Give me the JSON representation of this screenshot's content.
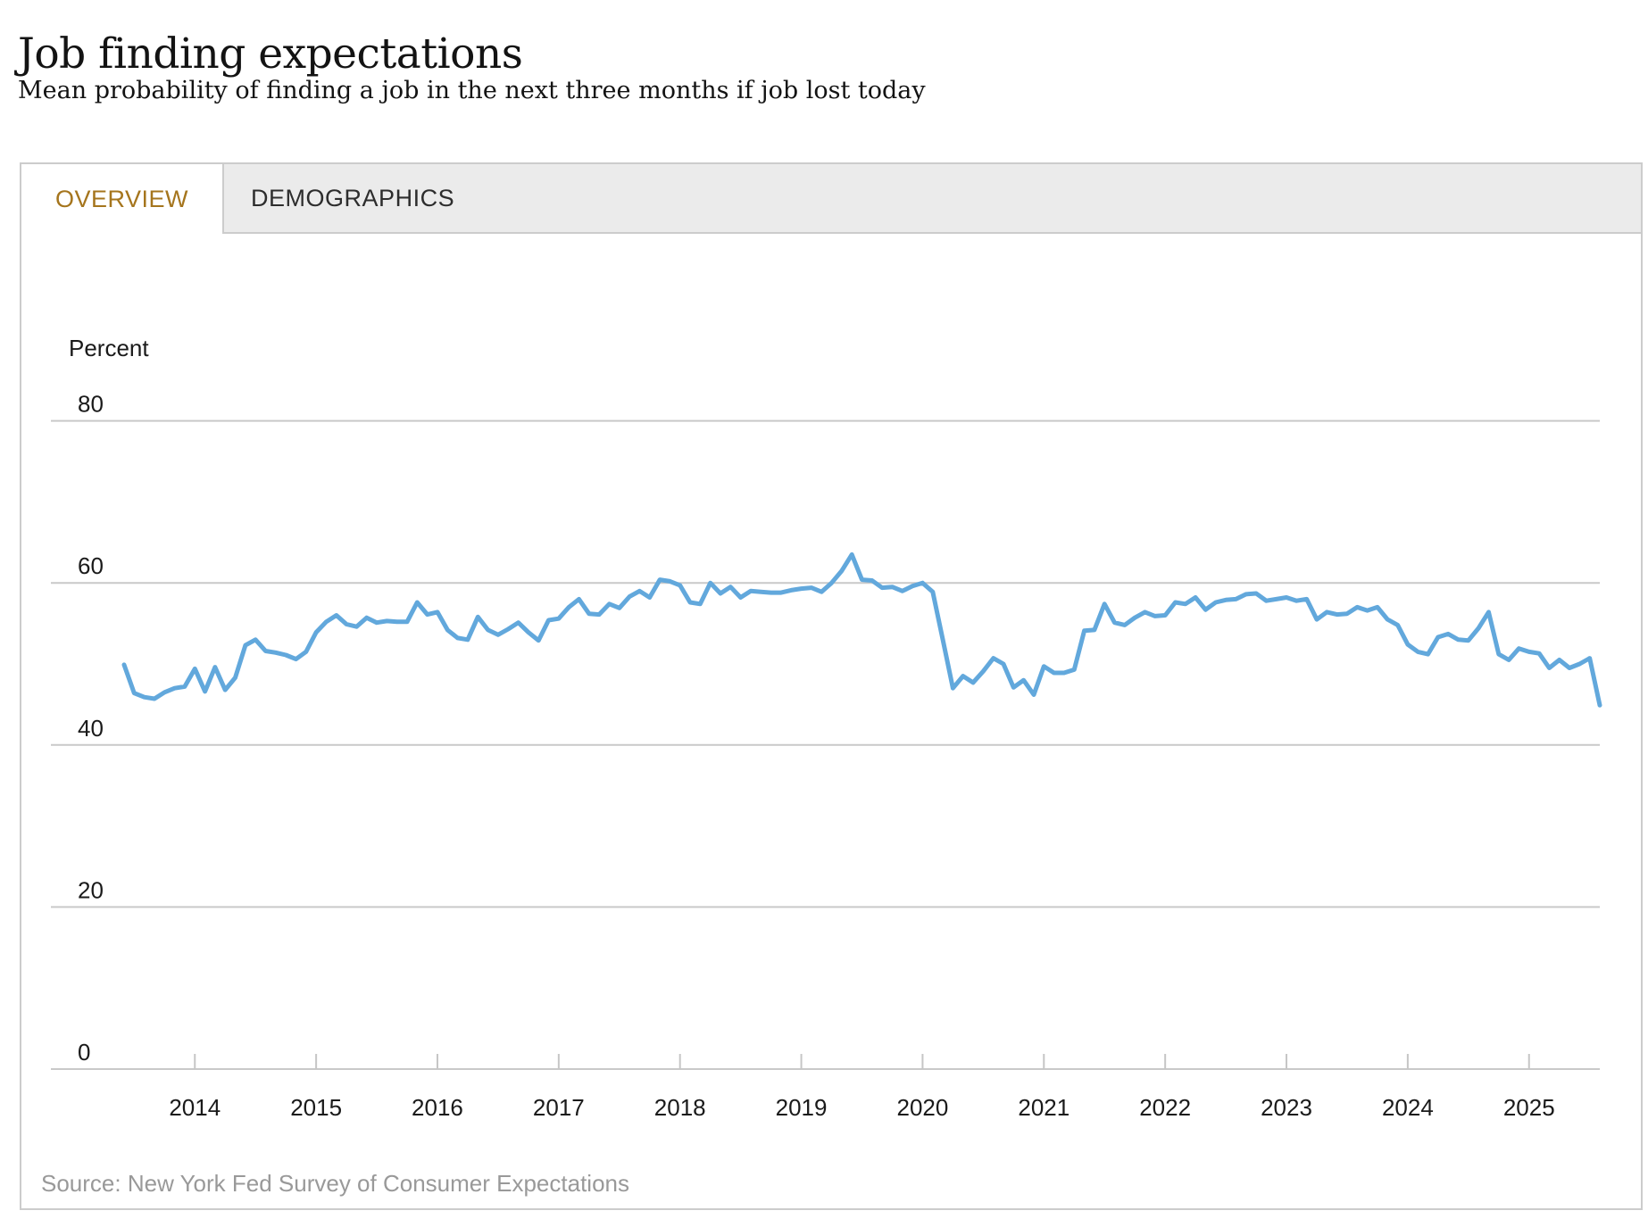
{
  "page": {
    "title": "Job finding expectations",
    "subtitle": "Mean probability of finding a job in the next three months if job lost today"
  },
  "tabs": [
    {
      "label": "OVERVIEW",
      "active": true
    },
    {
      "label": "DEMOGRAPHICS",
      "active": false
    }
  ],
  "source_note": "Source: New York Fed Survey of Consumer Expectations",
  "colors": {
    "line": "#62a8dc",
    "gridline": "#c9c9c9",
    "tick": "#c6c6c6",
    "axis_text": "#1a1a1a",
    "active_tab_text": "#a5751d",
    "inactive_tab_text": "#2d2d2d",
    "tabbar_bg": "#ebebeb",
    "card_border": "#cccccc",
    "source_text": "#999999"
  },
  "chart_data": {
    "type": "line",
    "title": "Job finding expectations",
    "ylabel": "Percent",
    "grid": "horizontal",
    "legend_position": "none",
    "ylim": [
      0,
      88
    ],
    "y_ticks": [
      80,
      60,
      40,
      20,
      0
    ],
    "x_tick_labels": [
      "2014",
      "2015",
      "2016",
      "2017",
      "2018",
      "2019",
      "2020",
      "2021",
      "2022",
      "2023",
      "2024",
      "2025"
    ],
    "x_range_start": "2013-06",
    "x_range_end": "2025-08",
    "frequency": "monthly",
    "series": [
      {
        "name": "Mean probability of finding a job in the next three months if job lost today",
        "values": [
          49.9,
          46.4,
          45.9,
          45.7,
          46.5,
          47.0,
          47.2,
          49.4,
          46.6,
          49.6,
          46.8,
          48.3,
          52.3,
          53.0,
          51.6,
          51.4,
          51.1,
          50.6,
          51.5,
          53.9,
          55.2,
          56.0,
          54.9,
          54.6,
          55.7,
          55.1,
          55.3,
          55.2,
          55.2,
          57.6,
          56.1,
          56.4,
          54.2,
          53.2,
          53.0,
          55.8,
          54.2,
          53.6,
          54.3,
          55.1,
          53.9,
          52.9,
          55.4,
          55.6,
          57.0,
          58.0,
          56.2,
          56.1,
          57.4,
          56.9,
          58.3,
          59.0,
          58.2,
          60.4,
          60.2,
          59.7,
          57.6,
          57.4,
          60.0,
          58.7,
          59.5,
          58.2,
          59.0,
          58.9,
          58.8,
          58.8,
          59.1,
          59.3,
          59.4,
          58.9,
          60.0,
          61.5,
          63.5,
          60.4,
          60.3,
          59.4,
          59.5,
          59.0,
          59.6,
          60.0,
          58.9,
          53.0,
          47.0,
          48.5,
          47.7,
          49.1,
          50.7,
          50.0,
          47.1,
          48.0,
          46.2,
          49.7,
          48.9,
          48.9,
          49.3,
          54.1,
          54.2,
          57.4,
          55.1,
          54.8,
          55.7,
          56.4,
          55.9,
          56.0,
          57.6,
          57.4,
          58.2,
          56.7,
          57.6,
          57.9,
          58.0,
          58.6,
          58.7,
          57.8,
          58.0,
          58.2,
          57.8,
          58.0,
          55.5,
          56.4,
          56.1,
          56.2,
          57.0,
          56.6,
          57.0,
          55.5,
          54.8,
          52.4,
          51.5,
          51.2,
          53.3,
          53.7,
          53.0,
          52.9,
          54.4,
          56.4,
          51.2,
          50.5,
          51.9,
          51.5,
          51.3,
          49.5,
          50.5,
          49.5,
          50.0,
          50.7,
          44.9
        ]
      }
    ]
  }
}
